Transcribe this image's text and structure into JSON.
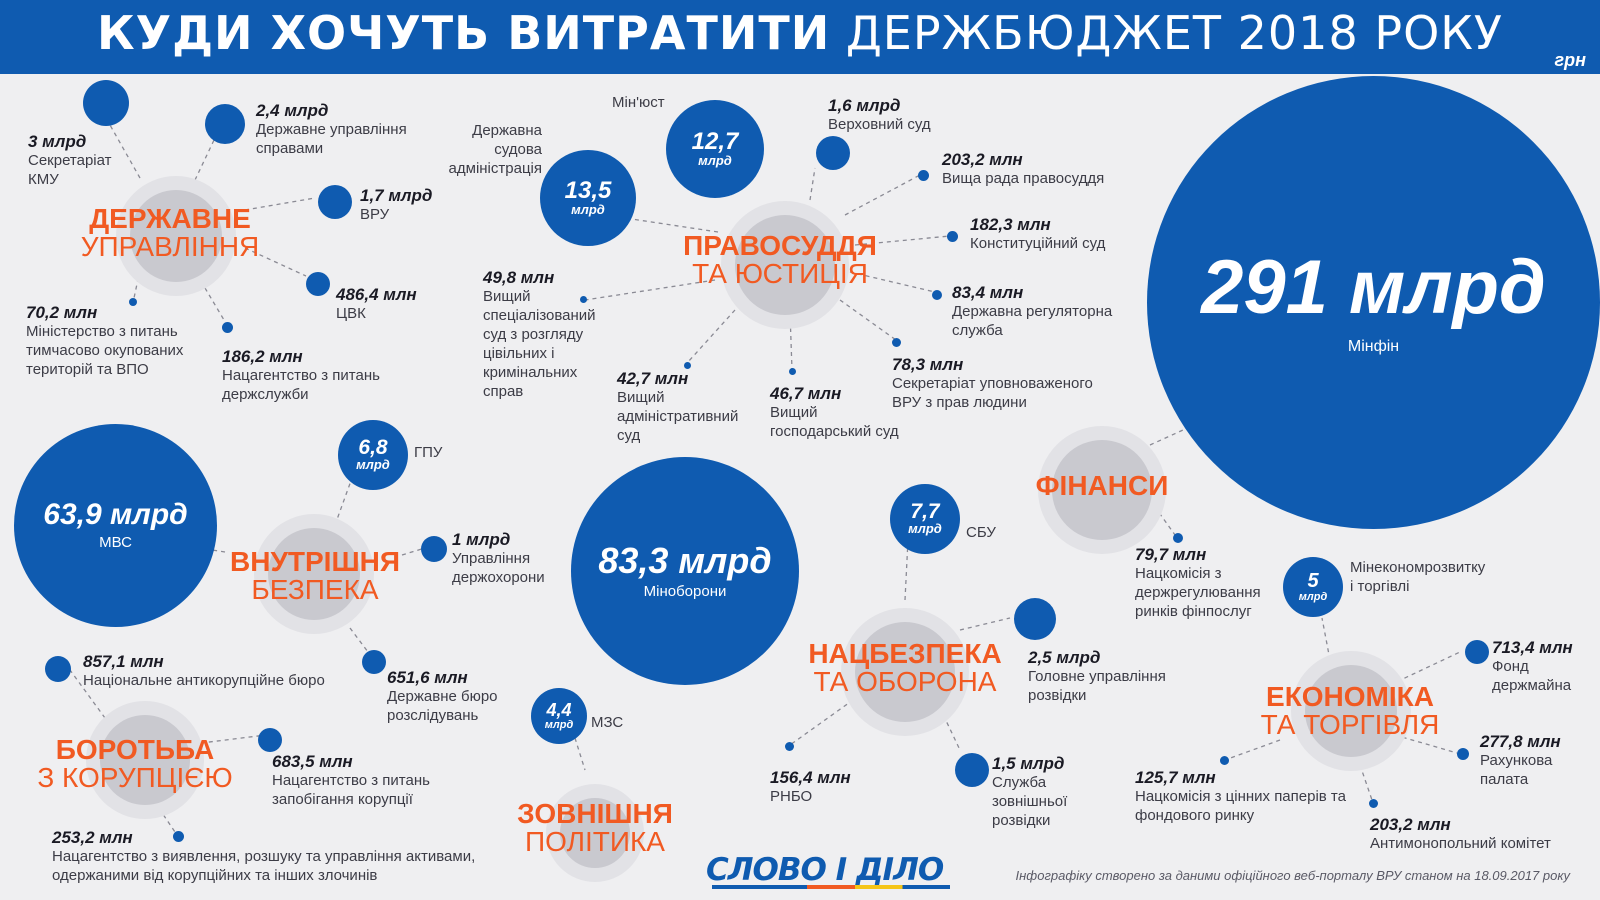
{
  "header": {
    "title_bold": "КУДИ ХОЧУТЬ ВИТРАТИТИ",
    "title_rest": "ДЕРЖБЮДЖЕТ 2018 РОКУ",
    "currency": "грн"
  },
  "colors": {
    "accent_blue": "#0f5bb0",
    "category_orange": "#f15a22",
    "background": "#efeff1"
  },
  "categories": {
    "gov": {
      "line1": "ДЕРЖАВНЕ",
      "line2": "УПРАВЛІННЯ"
    },
    "justice": {
      "line1": "ПРАВОСУДДЯ",
      "line2": "ТА ЮСТИЦІЯ"
    },
    "finance": {
      "line1": "ФІНАНСИ",
      "line2": ""
    },
    "security": {
      "line1": "ВНУТРІШНЯ",
      "line2": "БЕЗПЕКА"
    },
    "defense": {
      "line1": "НАЦБЕЗПЕКА",
      "line2": "ТА ОБОРОНА"
    },
    "economy": {
      "line1": "ЕКОНОМІКА",
      "line2": "ТА ТОРГІВЛЯ"
    },
    "corruption": {
      "line1": "БОРОТЬБА",
      "line2": "З КОРУПЦІЄЮ"
    },
    "foreign": {
      "line1": "ЗОВНІШНЯ",
      "line2": "ПОЛІТИКА"
    }
  },
  "bubbles": {
    "minfin": {
      "value": "291 млрд",
      "name": "Мінфін"
    },
    "mvs": {
      "value": "63,9 млрд",
      "name": "МВС"
    },
    "minobor": {
      "value": "83,3 млрд",
      "name": "Міноборони"
    },
    "minjust": {
      "value": "12,7",
      "unit": "млрд",
      "name": "Мін'юст"
    },
    "dsa": {
      "value": "13,5",
      "unit": "млрд",
      "name": "Державна судова адміністрація"
    },
    "gpu": {
      "value": "6,8",
      "unit": "млрд",
      "name": "ГПУ"
    },
    "sbu": {
      "value": "7,7",
      "unit": "млрд",
      "name": "СБУ"
    },
    "mzs": {
      "value": "4,4",
      "unit": "млрд",
      "name": "МЗС"
    },
    "mineco": {
      "value": "5",
      "unit": "млрд",
      "name": "Мінекономрозвитку і торгівлі"
    }
  },
  "labels": {
    "kmu": {
      "value": "3 млрд",
      "name": "Секретаріат КМУ"
    },
    "dus": {
      "value": "2,4 млрд",
      "name": "Державне управління справами"
    },
    "vru": {
      "value": "1,7 млрд",
      "name": "ВРУ"
    },
    "cvk": {
      "value": "486,4 млн",
      "name": "ЦВК"
    },
    "minto": {
      "value": "70,2 млн",
      "name": "Міністерство з питань тимчасово окупованих територій та ВПО"
    },
    "ds": {
      "value": "186,2 млн",
      "name": "Нацагентство з питань держслужби"
    },
    "vs": {
      "value": "1,6 млрд",
      "name": "Верховний суд"
    },
    "vrp": {
      "value": "203,2 млн",
      "name": "Вища рада правосуддя"
    },
    "ks": {
      "value": "182,3 млн",
      "name": "Конституційний суд"
    },
    "drs": {
      "value": "83,4 млн",
      "name": "Державна регуляторна служба"
    },
    "omb": {
      "value": "78,3 млн",
      "name": "Секретаріат уповноваженого ВРУ з прав людини"
    },
    "vgs": {
      "value": "46,7 млн",
      "name": "Вищий господарський суд"
    },
    "vas": {
      "value": "42,7 млн",
      "name": "Вищий адміністративний суд"
    },
    "vss": {
      "value": "49,8 млн",
      "name": "Вищий спеціалізований суд з розгляду цівільних і кримінальних справ"
    },
    "nkfp": {
      "value": "79,7 млн",
      "name": "Нацкомісія з держрегулювання ринків фінпослуг"
    },
    "udo": {
      "value": "1 млрд",
      "name": "Управління держохорони"
    },
    "dbr": {
      "value": "651,6 млн",
      "name": "Державне бюро розслідувань"
    },
    "nabu": {
      "value": "857,1 млн",
      "name": "Національне антикорупційне бюро"
    },
    "nazk": {
      "value": "683,5 млн",
      "name": "Нацагентство з питань запобігання корупції"
    },
    "arma": {
      "value": "253,2 млн",
      "name": "Нацагентство з виявлення, розшуку та управління активами, одержаними від корупційних та інших злочинів"
    },
    "gur": {
      "value": "2,5 млрд",
      "name": "Головне управління розвідки"
    },
    "rnbo": {
      "value": "156,4 млн",
      "name": "РНБО"
    },
    "szr": {
      "value": "1,5 млрд",
      "name": "Служба зовнішньої розвідки"
    },
    "fdm": {
      "value": "713,4 млн",
      "name": "Фонд держмайна"
    },
    "rp": {
      "value": "277,8 млн",
      "name": "Рахункова палата"
    },
    "amk": {
      "value": "203,2 млн",
      "name": "Антимонопольний комітет"
    },
    "nkcp": {
      "value": "125,7 млн",
      "name": "Нацкомісія з цінних паперів та фондового ринку"
    }
  },
  "footer": {
    "logo": "СЛОВО І ДІЛО",
    "source": "Інфографіку створено за даними офіційного веб-порталу ВРУ станом на 18.09.2017 року"
  }
}
